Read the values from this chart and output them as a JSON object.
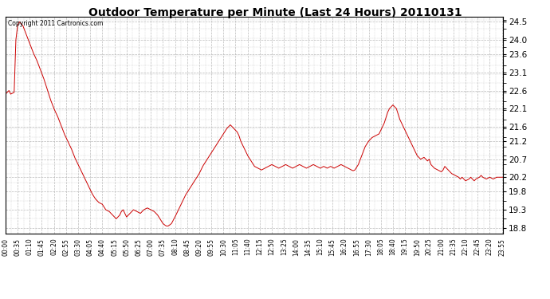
{
  "title": "Outdoor Temperature per Minute (Last 24 Hours) 20110131",
  "copyright_text": "Copyright 2011 Cartronics.com",
  "line_color": "#cc0000",
  "background_color": "#ffffff",
  "grid_color": "#bbbbbb",
  "y_ticks": [
    18.8,
    19.3,
    19.8,
    20.2,
    20.7,
    21.2,
    21.6,
    22.1,
    22.6,
    23.1,
    23.6,
    24.0,
    24.5
  ],
  "ylim": [
    18.65,
    24.65
  ],
  "x_tick_labels": [
    "00:00",
    "00:35",
    "01:10",
    "01:45",
    "02:20",
    "02:55",
    "03:30",
    "04:05",
    "04:40",
    "05:15",
    "05:50",
    "06:25",
    "07:00",
    "07:35",
    "08:10",
    "08:45",
    "09:20",
    "09:55",
    "10:30",
    "11:05",
    "11:40",
    "12:15",
    "12:50",
    "13:25",
    "14:00",
    "14:35",
    "15:10",
    "15:45",
    "16:20",
    "16:55",
    "17:30",
    "18:05",
    "18:40",
    "19:15",
    "19:50",
    "20:25",
    "21:00",
    "21:35",
    "22:10",
    "22:45",
    "23:20",
    "23:55"
  ],
  "num_minutes": 1440,
  "key_points": [
    [
      0,
      22.5
    ],
    [
      10,
      22.6
    ],
    [
      15,
      22.5
    ],
    [
      25,
      22.55
    ],
    [
      30,
      24.0
    ],
    [
      35,
      24.4
    ],
    [
      40,
      24.5
    ],
    [
      50,
      24.4
    ],
    [
      60,
      24.15
    ],
    [
      70,
      23.9
    ],
    [
      80,
      23.65
    ],
    [
      90,
      23.45
    ],
    [
      100,
      23.2
    ],
    [
      110,
      22.95
    ],
    [
      120,
      22.65
    ],
    [
      130,
      22.35
    ],
    [
      140,
      22.1
    ],
    [
      150,
      21.9
    ],
    [
      160,
      21.65
    ],
    [
      170,
      21.4
    ],
    [
      180,
      21.2
    ],
    [
      190,
      21.0
    ],
    [
      200,
      20.75
    ],
    [
      210,
      20.55
    ],
    [
      220,
      20.35
    ],
    [
      230,
      20.15
    ],
    [
      240,
      19.95
    ],
    [
      250,
      19.75
    ],
    [
      260,
      19.6
    ],
    [
      270,
      19.5
    ],
    [
      280,
      19.45
    ],
    [
      290,
      19.3
    ],
    [
      300,
      19.25
    ],
    [
      310,
      19.15
    ],
    [
      315,
      19.1
    ],
    [
      320,
      19.05
    ],
    [
      325,
      19.1
    ],
    [
      330,
      19.15
    ],
    [
      335,
      19.25
    ],
    [
      340,
      19.3
    ],
    [
      345,
      19.2
    ],
    [
      350,
      19.1
    ],
    [
      355,
      19.15
    ],
    [
      360,
      19.2
    ],
    [
      370,
      19.3
    ],
    [
      380,
      19.25
    ],
    [
      390,
      19.2
    ],
    [
      400,
      19.3
    ],
    [
      410,
      19.35
    ],
    [
      420,
      19.3
    ],
    [
      430,
      19.25
    ],
    [
      440,
      19.15
    ],
    [
      450,
      19.0
    ],
    [
      455,
      18.92
    ],
    [
      460,
      18.88
    ],
    [
      465,
      18.85
    ],
    [
      470,
      18.85
    ],
    [
      475,
      18.88
    ],
    [
      480,
      18.92
    ],
    [
      490,
      19.1
    ],
    [
      500,
      19.3
    ],
    [
      510,
      19.5
    ],
    [
      520,
      19.7
    ],
    [
      530,
      19.85
    ],
    [
      540,
      20.0
    ],
    [
      550,
      20.15
    ],
    [
      560,
      20.3
    ],
    [
      570,
      20.5
    ],
    [
      580,
      20.65
    ],
    [
      590,
      20.8
    ],
    [
      600,
      20.95
    ],
    [
      610,
      21.1
    ],
    [
      620,
      21.25
    ],
    [
      630,
      21.4
    ],
    [
      640,
      21.55
    ],
    [
      645,
      21.6
    ],
    [
      650,
      21.65
    ],
    [
      655,
      21.6
    ],
    [
      660,
      21.55
    ],
    [
      665,
      21.5
    ],
    [
      670,
      21.45
    ],
    [
      675,
      21.35
    ],
    [
      680,
      21.2
    ],
    [
      690,
      21.0
    ],
    [
      700,
      20.8
    ],
    [
      710,
      20.65
    ],
    [
      720,
      20.5
    ],
    [
      730,
      20.45
    ],
    [
      740,
      20.4
    ],
    [
      750,
      20.45
    ],
    [
      760,
      20.5
    ],
    [
      770,
      20.55
    ],
    [
      780,
      20.5
    ],
    [
      790,
      20.45
    ],
    [
      800,
      20.5
    ],
    [
      810,
      20.55
    ],
    [
      820,
      20.5
    ],
    [
      830,
      20.45
    ],
    [
      840,
      20.5
    ],
    [
      850,
      20.55
    ],
    [
      860,
      20.5
    ],
    [
      870,
      20.45
    ],
    [
      880,
      20.5
    ],
    [
      890,
      20.55
    ],
    [
      900,
      20.5
    ],
    [
      910,
      20.45
    ],
    [
      920,
      20.5
    ],
    [
      930,
      20.45
    ],
    [
      940,
      20.5
    ],
    [
      950,
      20.45
    ],
    [
      960,
      20.5
    ],
    [
      970,
      20.55
    ],
    [
      980,
      20.5
    ],
    [
      990,
      20.45
    ],
    [
      1000,
      20.4
    ],
    [
      1005,
      20.38
    ],
    [
      1010,
      20.4
    ],
    [
      1020,
      20.55
    ],
    [
      1030,
      20.8
    ],
    [
      1040,
      21.05
    ],
    [
      1050,
      21.2
    ],
    [
      1060,
      21.3
    ],
    [
      1070,
      21.35
    ],
    [
      1080,
      21.4
    ],
    [
      1085,
      21.5
    ],
    [
      1090,
      21.6
    ],
    [
      1095,
      21.7
    ],
    [
      1100,
      21.85
    ],
    [
      1105,
      22.0
    ],
    [
      1110,
      22.1
    ],
    [
      1115,
      22.15
    ],
    [
      1120,
      22.2
    ],
    [
      1125,
      22.15
    ],
    [
      1130,
      22.1
    ],
    [
      1135,
      21.95
    ],
    [
      1140,
      21.8
    ],
    [
      1150,
      21.6
    ],
    [
      1160,
      21.4
    ],
    [
      1170,
      21.2
    ],
    [
      1180,
      21.0
    ],
    [
      1190,
      20.8
    ],
    [
      1200,
      20.7
    ],
    [
      1210,
      20.75
    ],
    [
      1215,
      20.7
    ],
    [
      1220,
      20.65
    ],
    [
      1225,
      20.7
    ],
    [
      1230,
      20.55
    ],
    [
      1240,
      20.45
    ],
    [
      1250,
      20.4
    ],
    [
      1260,
      20.35
    ],
    [
      1265,
      20.4
    ],
    [
      1270,
      20.5
    ],
    [
      1275,
      20.45
    ],
    [
      1280,
      20.4
    ],
    [
      1285,
      20.35
    ],
    [
      1290,
      20.3
    ],
    [
      1300,
      20.25
    ],
    [
      1310,
      20.2
    ],
    [
      1315,
      20.15
    ],
    [
      1320,
      20.2
    ],
    [
      1325,
      20.15
    ],
    [
      1330,
      20.1
    ],
    [
      1340,
      20.15
    ],
    [
      1345,
      20.2
    ],
    [
      1350,
      20.15
    ],
    [
      1355,
      20.1
    ],
    [
      1360,
      20.15
    ],
    [
      1370,
      20.2
    ],
    [
      1375,
      20.25
    ],
    [
      1380,
      20.2
    ],
    [
      1390,
      20.15
    ],
    [
      1400,
      20.2
    ],
    [
      1410,
      20.15
    ],
    [
      1420,
      20.2
    ],
    [
      1430,
      20.2
    ],
    [
      1439,
      20.2
    ]
  ]
}
